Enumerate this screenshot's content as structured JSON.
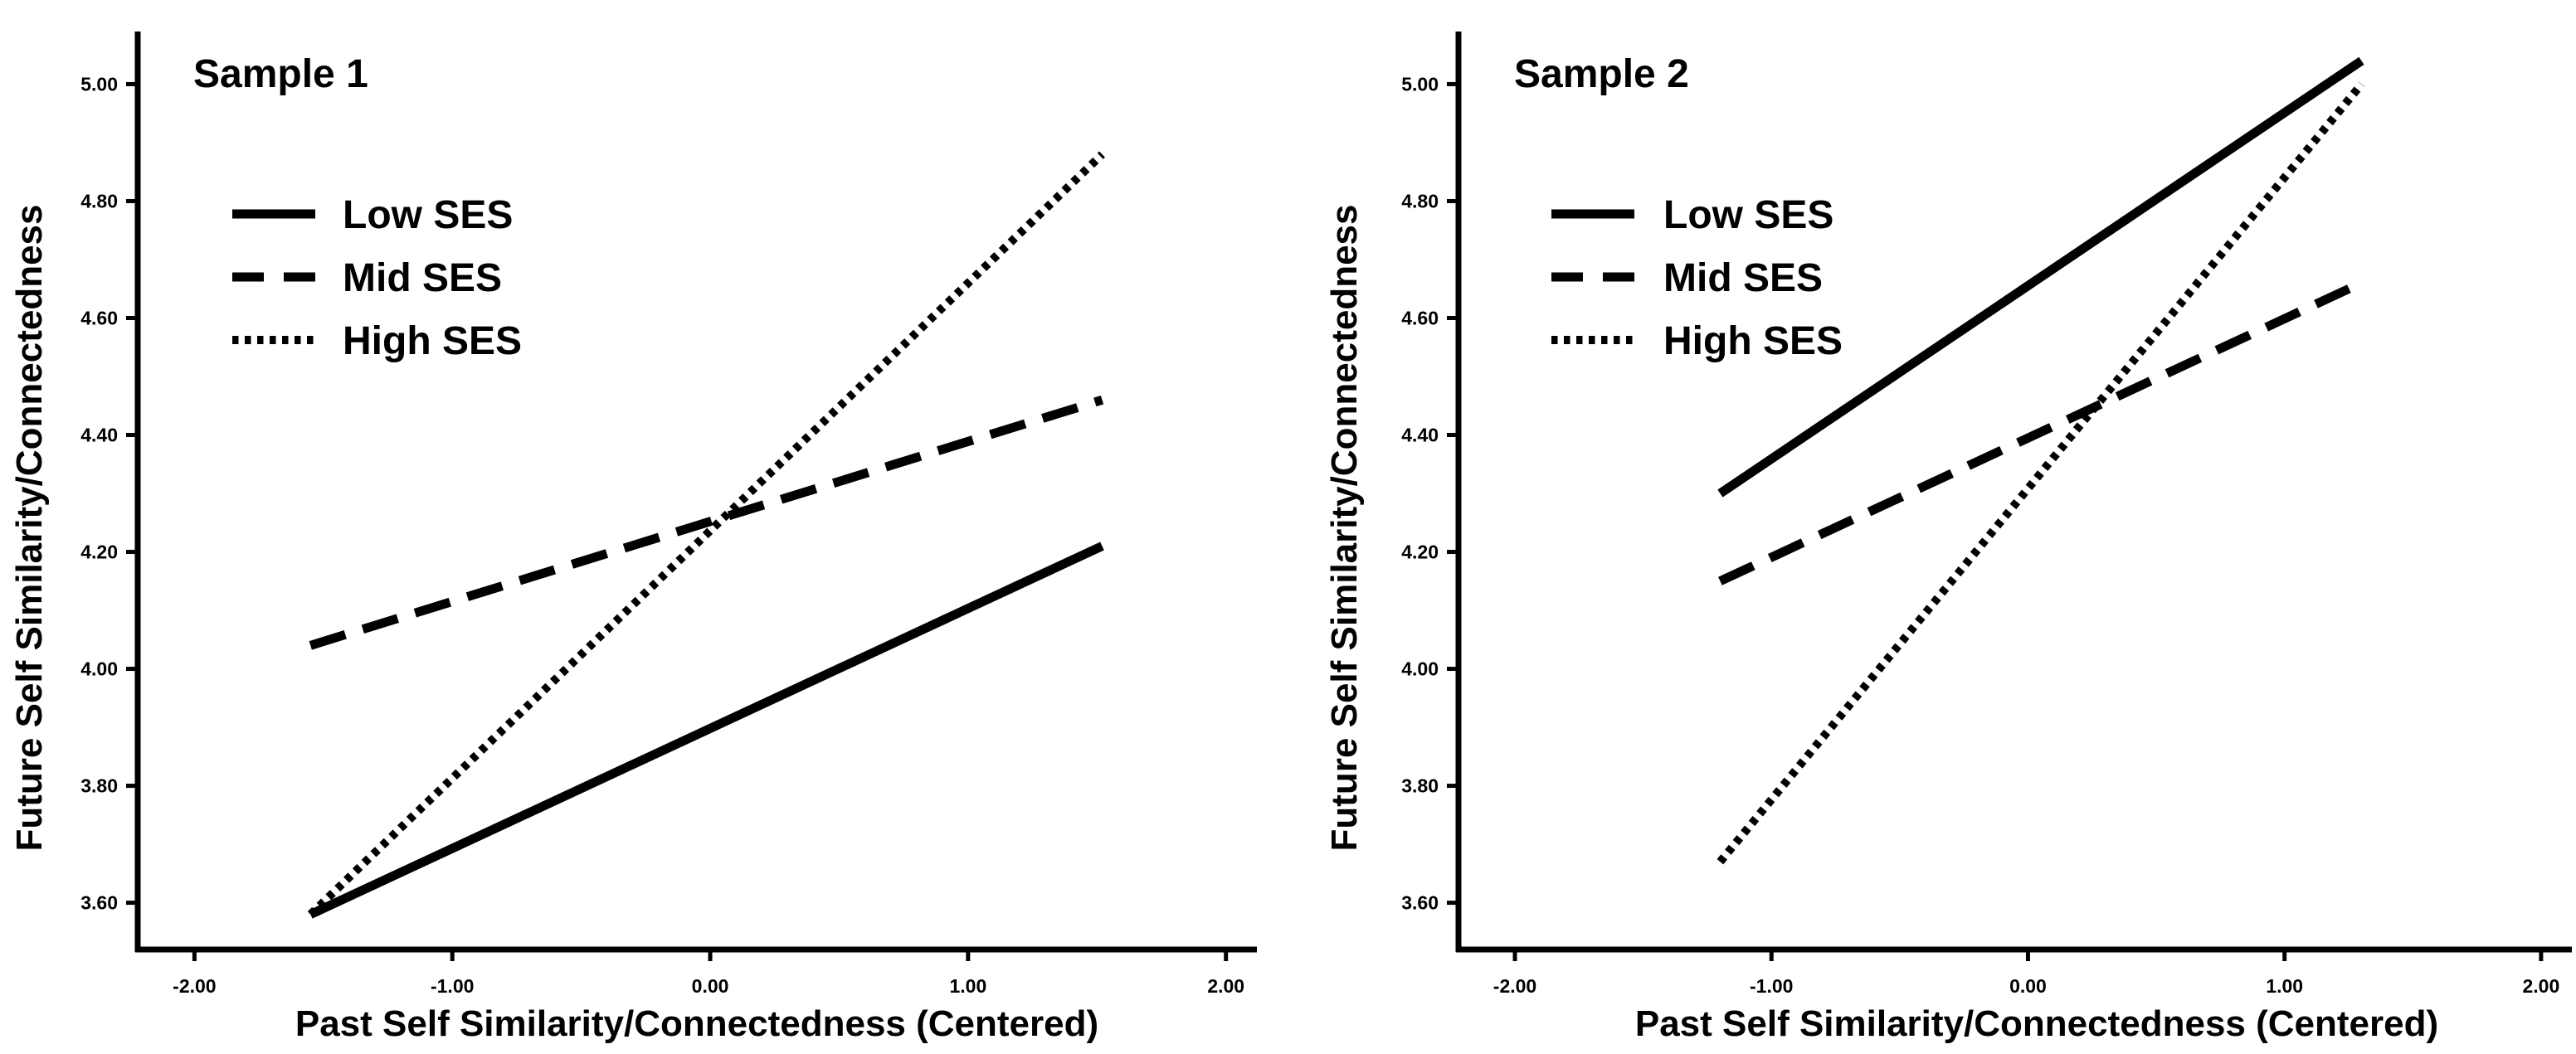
{
  "chart_data": [
    {
      "type": "line",
      "title": "Sample 1",
      "xlabel": "Past Self Similarity/Connectedness (Centered)",
      "ylabel": "Future Self Similarity/Connectedness",
      "xlim": [
        -2.22,
        2.12
      ],
      "ylim": [
        3.52,
        5.09
      ],
      "xticks": [
        -2,
        -1,
        0,
        1,
        2
      ],
      "xtick_labels": [
        "-2.00",
        "-1.00",
        "0.00",
        "1.00",
        "2.00"
      ],
      "yticks": [
        3.6,
        3.8,
        4.0,
        4.2,
        4.4,
        4.6,
        4.8,
        5.0
      ],
      "ytick_labels": [
        "3.60",
        "3.80",
        "4.00",
        "4.20",
        "4.40",
        "4.60",
        "4.80",
        "5.00"
      ],
      "grid": false,
      "legend_position": "top-left",
      "series": [
        {
          "name": "Low SES",
          "style": "solid",
          "x": [
            -1.55,
            1.52
          ],
          "y": [
            3.58,
            4.21
          ]
        },
        {
          "name": "Mid SES",
          "style": "dashed",
          "x": [
            -1.55,
            1.52
          ],
          "y": [
            4.04,
            4.46
          ]
        },
        {
          "name": "High SES",
          "style": "dotted",
          "x": [
            -1.55,
            1.52
          ],
          "y": [
            3.58,
            4.88
          ]
        }
      ]
    },
    {
      "type": "line",
      "title": "Sample 2",
      "xlabel": "Past Self Similarity/Connectedness (Centered)",
      "ylabel": "Future Self Similarity/Connectedness",
      "xlim": [
        -2.22,
        2.12
      ],
      "ylim": [
        3.52,
        5.09
      ],
      "xticks": [
        -2,
        -1,
        0,
        1,
        2
      ],
      "xtick_labels": [
        "-2.00",
        "-1.00",
        "0.00",
        "1.00",
        "2.00"
      ],
      "yticks": [
        3.6,
        3.8,
        4.0,
        4.2,
        4.4,
        4.6,
        4.8,
        5.0
      ],
      "ytick_labels": [
        "3.60",
        "3.80",
        "4.00",
        "4.20",
        "4.40",
        "4.60",
        "4.80",
        "5.00"
      ],
      "grid": false,
      "legend_position": "top-left",
      "series": [
        {
          "name": "Low SES",
          "style": "solid",
          "x": [
            -1.2,
            1.3
          ],
          "y": [
            4.3,
            5.04
          ]
        },
        {
          "name": "Mid SES",
          "style": "dashed",
          "x": [
            -1.2,
            1.3
          ],
          "y": [
            4.15,
            4.66
          ]
        },
        {
          "name": "High SES",
          "style": "dotted",
          "x": [
            -1.2,
            1.3
          ],
          "y": [
            3.67,
            5.0
          ]
        }
      ]
    }
  ]
}
